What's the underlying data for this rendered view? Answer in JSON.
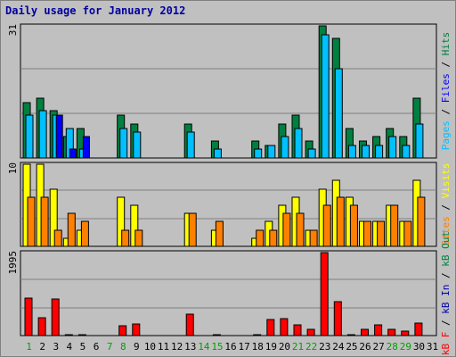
{
  "title": "Daily usage for January 2012",
  "colors": {
    "background": "#c0c0c0",
    "plot_background": "#c0c0c0",
    "grid": "#808080",
    "title": "#0000a0",
    "hits": "#008040",
    "files": "#00c0ff",
    "pages": "#0000ff",
    "visits": "#ffff00",
    "sites": "#ff8000",
    "kbytes": "#ff0000",
    "weekend_day": "#00a000",
    "weekday": "#000000"
  },
  "chart_data": [
    {
      "type": "bar",
      "panel": "traffic",
      "ytick": "31",
      "ylim": [
        0,
        31
      ],
      "side_labels": [
        {
          "text": "Pages",
          "color": "#00c0ff"
        },
        {
          "text": " / ",
          "color": "#000000"
        },
        {
          "text": "Files",
          "color": "#0000ff"
        },
        {
          "text": " / ",
          "color": "#000000"
        },
        {
          "text": "Hits",
          "color": "#008040"
        }
      ],
      "categories": [
        "1",
        "2",
        "3",
        "4",
        "5",
        "6",
        "7",
        "8",
        "9",
        "10",
        "11",
        "12",
        "13",
        "14",
        "15",
        "16",
        "17",
        "18",
        "19",
        "20",
        "21",
        "22",
        "23",
        "24",
        "25",
        "26",
        "27",
        "28",
        "29",
        "30",
        "31"
      ],
      "series": [
        {
          "name": "Hits",
          "color": "#008040",
          "values": [
            13,
            14,
            11,
            5,
            7,
            0,
            0,
            10,
            8,
            0,
            0,
            0,
            8,
            0,
            4,
            0,
            0,
            4,
            3,
            8,
            10,
            4,
            31,
            28,
            7,
            4,
            5,
            7,
            5,
            14,
            0
          ]
        },
        {
          "name": "Files",
          "color": "#00c0ff",
          "values": [
            10,
            11,
            10,
            7,
            2,
            0,
            0,
            7,
            6,
            0,
            0,
            0,
            6,
            0,
            2,
            0,
            0,
            2,
            3,
            5,
            7,
            2,
            29,
            21,
            3,
            3,
            3,
            5,
            3,
            8,
            0
          ]
        },
        {
          "name": "Pages",
          "color": "#0000ff",
          "values": [
            0,
            0,
            10,
            2,
            5,
            0,
            0,
            0,
            0,
            0,
            0,
            0,
            0,
            0,
            0,
            0,
            0,
            0,
            0,
            0,
            0,
            0,
            0,
            0,
            0,
            0,
            0,
            0,
            0,
            0,
            0
          ]
        }
      ]
    },
    {
      "type": "bar",
      "panel": "visitors",
      "ytick": "10",
      "ylim": [
        0,
        10
      ],
      "side_labels": [
        {
          "text": "Sites",
          "color": "#ff8000"
        },
        {
          "text": " / ",
          "color": "#000000"
        },
        {
          "text": "Visits",
          "color": "#ffff00"
        }
      ],
      "categories": [
        "1",
        "2",
        "3",
        "4",
        "5",
        "6",
        "7",
        "8",
        "9",
        "10",
        "11",
        "12",
        "13",
        "14",
        "15",
        "16",
        "17",
        "18",
        "19",
        "20",
        "21",
        "22",
        "23",
        "24",
        "25",
        "26",
        "27",
        "28",
        "29",
        "30",
        "31"
      ],
      "series": [
        {
          "name": "Visits",
          "color": "#ffff00",
          "values": [
            10,
            10,
            7,
            1,
            2,
            0,
            0,
            6,
            5,
            0,
            0,
            0,
            4,
            0,
            2,
            0,
            0,
            1,
            3,
            5,
            6,
            2,
            7,
            8,
            6,
            3,
            3,
            5,
            3,
            8,
            0
          ]
        },
        {
          "name": "Sites",
          "color": "#ff8000",
          "values": [
            6,
            6,
            2,
            4,
            3,
            0,
            0,
            2,
            2,
            0,
            0,
            0,
            4,
            0,
            3,
            0,
            0,
            2,
            2,
            4,
            4,
            2,
            5,
            6,
            5,
            3,
            3,
            5,
            3,
            6,
            0
          ]
        }
      ]
    },
    {
      "type": "bar",
      "panel": "kbytes",
      "ytick": "1995",
      "ylim": [
        0,
        1995
      ],
      "side_labels": [
        {
          "text": "kB F",
          "color": "#ff0000"
        },
        {
          "text": " / ",
          "color": "#000000"
        },
        {
          "text": "kB In",
          "color": "#0000a0"
        },
        {
          "text": " / ",
          "color": "#000000"
        },
        {
          "text": "kB Out",
          "color": "#008040"
        }
      ],
      "categories": [
        "1",
        "2",
        "3",
        "4",
        "5",
        "6",
        "7",
        "8",
        "9",
        "10",
        "11",
        "12",
        "13",
        "14",
        "15",
        "16",
        "17",
        "18",
        "19",
        "20",
        "21",
        "22",
        "23",
        "24",
        "25",
        "26",
        "27",
        "28",
        "29",
        "30",
        "31"
      ],
      "series": [
        {
          "name": "kB F",
          "color": "#ff0000",
          "values": [
            900,
            430,
            880,
            20,
            20,
            0,
            0,
            240,
            280,
            0,
            0,
            0,
            520,
            0,
            20,
            0,
            0,
            20,
            380,
            400,
            260,
            150,
            1995,
            820,
            20,
            140,
            260,
            150,
            100,
            310,
            0
          ]
        }
      ]
    }
  ],
  "weekend_days": [
    "1",
    "7",
    "8",
    "14",
    "15",
    "21",
    "22",
    "28",
    "29"
  ]
}
